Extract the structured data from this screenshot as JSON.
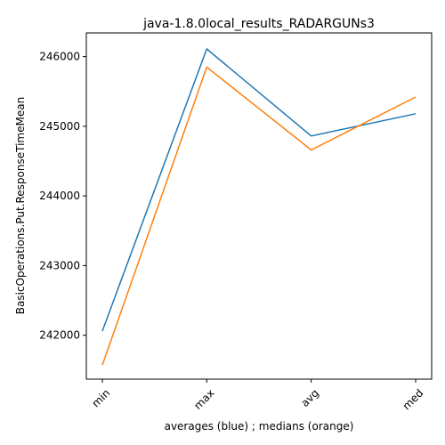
{
  "chart_data": {
    "type": "line",
    "title": "java-1.8.0local_results_RADARGUNs3",
    "xlabel": "averages (blue) ; medians (orange)",
    "ylabel": "BasicOperations.Put.ResponseTimeMean",
    "categories": [
      "min",
      "max",
      "avg",
      "med"
    ],
    "series": [
      {
        "values": [
          242060,
          246110,
          244860,
          245180
        ],
        "color": "#1f77b4"
      },
      {
        "values": [
          241570,
          245850,
          244660,
          245420
        ],
        "color": "#ff7f0e"
      }
    ],
    "yticks": [
      242000,
      243000,
      244000,
      245000,
      246000
    ],
    "ytick_labels": [
      "242000",
      "243000",
      "244000",
      "245000",
      "246000"
    ],
    "ylim": [
      241370,
      246340
    ],
    "grid": false,
    "legend": "none"
  }
}
